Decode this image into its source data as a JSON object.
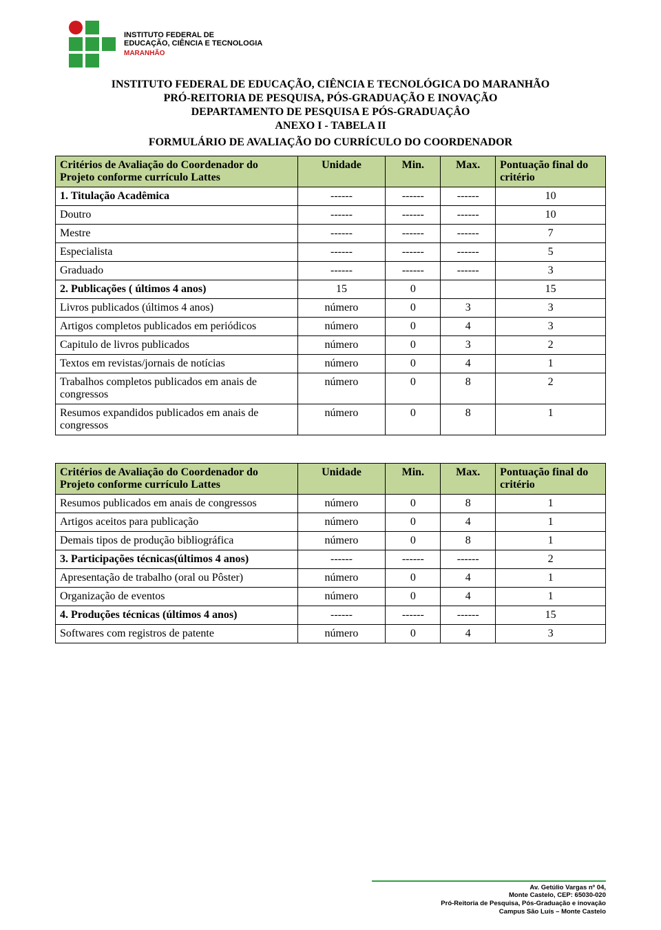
{
  "logo": {
    "line1": "INSTITUTO FEDERAL DE",
    "line2": "EDUCAÇÃO, CIÊNCIA E TECNOLOGIA",
    "region": "MARANHÃO"
  },
  "headings": {
    "h1": "INSTITUTO FEDERAL DE EDUCAÇÃO, CIÊNCIA E TECNOLÓGICA DO MARANHÃO",
    "h2": "PRÓ-REITORIA DE PESQUISA, PÓS-GRADUAÇÃO E INOVAÇÃO",
    "h3": "DEPARTAMENTO DE PESQUISA E PÓS-GRADUAÇÂO",
    "h4": "ANEXO I - TABELA II",
    "h5": "FORMULÁRIO DE AVALIAÇÃO DO CURRÍCULO DO COORDENADOR"
  },
  "table1": {
    "header": {
      "criteria": "Critérios de Avaliação do Coordenador do Projeto conforme currículo Lattes",
      "unidade": "Unidade",
      "min": "Min.",
      "max": "Max.",
      "pont": "Pontuação final do critério"
    },
    "rows": [
      {
        "label": "1. Titulação Acadêmica",
        "unidade": "------",
        "min": "------",
        "max": "------",
        "pont": "10",
        "section": true
      },
      {
        "label": "Doutro",
        "unidade": "------",
        "min": "------",
        "max": "------",
        "pont": "10"
      },
      {
        "label": "Mestre",
        "unidade": "------",
        "min": "------",
        "max": "------",
        "pont": "7"
      },
      {
        "label": "Especialista",
        "unidade": "------",
        "min": "------",
        "max": "------",
        "pont": "5"
      },
      {
        "label": "Graduado",
        "unidade": "------",
        "min": "------",
        "max": "------",
        "pont": "3"
      },
      {
        "label": "2. Publicações ( últimos 4 anos)",
        "unidade": "15",
        "min": "0",
        "max": "",
        "pont": "15",
        "section": true
      },
      {
        "label": "Livros publicados (últimos 4 anos)",
        "unidade": "número",
        "min": "0",
        "max": "3",
        "pont": "3"
      },
      {
        "label": "Artigos completos publicados em periódicos",
        "unidade": "número",
        "min": "0",
        "max": "4",
        "pont": "3"
      },
      {
        "label": "Capitulo de livros publicados",
        "unidade": "número",
        "min": "0",
        "max": "3",
        "pont": "2"
      },
      {
        "label": "Textos em revistas/jornais de notícias",
        "unidade": "número",
        "min": "0",
        "max": "4",
        "pont": "1"
      },
      {
        "label": "Trabalhos completos publicados em anais de congressos",
        "unidade": "número",
        "min": "0",
        "max": "8",
        "pont": "2"
      },
      {
        "label": "Resumos expandidos publicados em anais de congressos",
        "unidade": "número",
        "min": "0",
        "max": "8",
        "pont": "1"
      }
    ]
  },
  "table2": {
    "header": {
      "criteria": "Critérios de Avaliação do Coordenador do Projeto conforme currículo Lattes",
      "unidade": "Unidade",
      "min": "Min.",
      "max": "Max.",
      "pont": "Pontuação final do critério"
    },
    "rows": [
      {
        "label": "Resumos publicados em anais de congressos",
        "unidade": "número",
        "min": "0",
        "max": "8",
        "pont": "1"
      },
      {
        "label": "Artigos aceitos para publicação",
        "unidade": "número",
        "min": "0",
        "max": "4",
        "pont": "1"
      },
      {
        "label": "Demais tipos de produção bibliográfica",
        "unidade": "número",
        "min": "0",
        "max": "8",
        "pont": "1"
      },
      {
        "label": "3. Participações técnicas(últimos 4 anos)",
        "unidade": "------",
        "min": "------",
        "max": "------",
        "pont": "2",
        "section": true
      },
      {
        "label": "Apresentação de trabalho (oral ou Pôster)",
        "unidade": "número",
        "min": "0",
        "max": "4",
        "pont": "1"
      },
      {
        "label": "Organização de eventos",
        "unidade": "número",
        "min": "0",
        "max": "4",
        "pont": "1"
      },
      {
        "label": "4. Produções técnicas (últimos 4 anos)",
        "unidade": "------",
        "min": "------",
        "max": "------",
        "pont": "15",
        "section": true
      },
      {
        "label": "Softwares com registros de patente",
        "unidade": "número",
        "min": "0",
        "max": "4",
        "pont": "3"
      }
    ]
  },
  "footer": {
    "line1": "Av. Getúlio Vargas nº 04,",
    "line2": "Monte Castelo, CEP: 65030-020",
    "line3": "Pró-Reitoria de Pesquisa, Pós-Graduação e inovação",
    "line4": "Campus São Luís – Monte Castelo"
  },
  "colors": {
    "header_bg": "#c2d69a",
    "logo_green": "#2f9e41",
    "logo_red": "#cd191e"
  }
}
